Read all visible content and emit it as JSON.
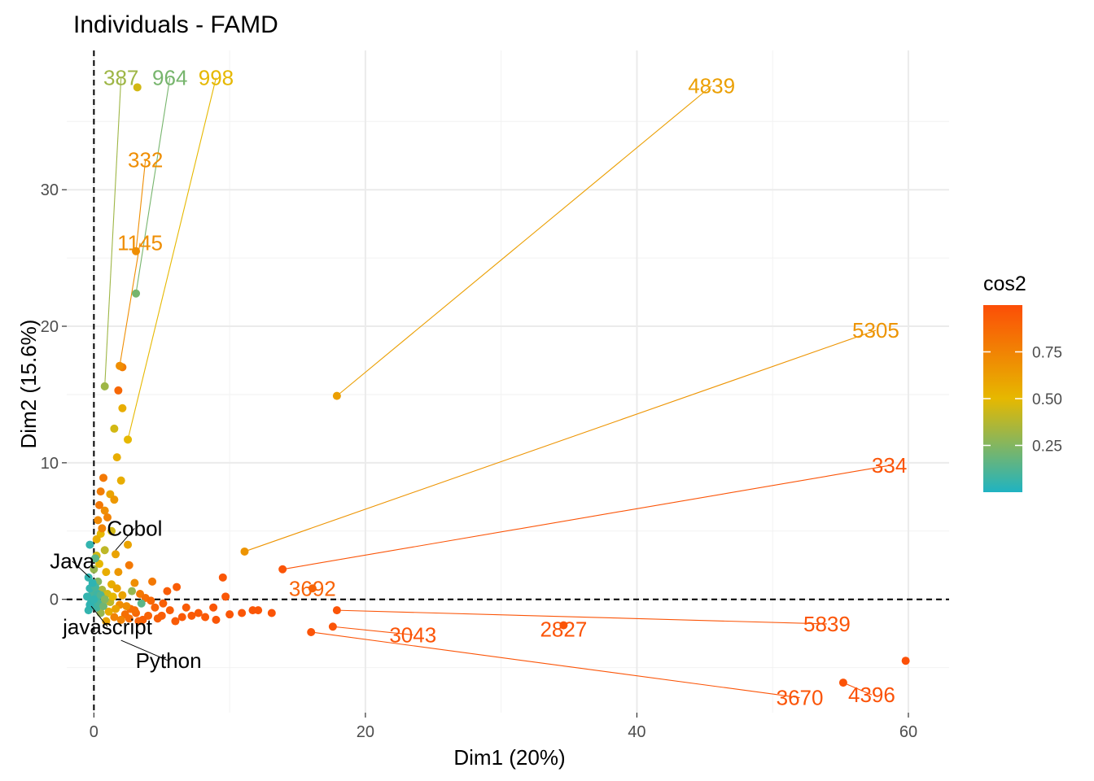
{
  "chart_data": {
    "type": "scatter",
    "title": "Individuals - FAMD",
    "xlabel": "Dim1 (20%)",
    "ylabel": "Dim2 (15.6%)",
    "xlim": [
      -2,
      63
    ],
    "ylim": [
      -8.3,
      40.2
    ],
    "x_ticks": [
      0,
      20,
      40,
      60
    ],
    "y_ticks": [
      0,
      10,
      20,
      30
    ],
    "grid": true,
    "reference_lines": {
      "x": 0,
      "y": 0
    },
    "legend": {
      "title": "cos2",
      "position": "right",
      "ticks": [
        0.25,
        0.5,
        0.75
      ],
      "tick_labels": [
        "0.25",
        "0.50",
        "0.75"
      ]
    },
    "colors": {
      "low": "#1fb3c2",
      "mid": "#e6b800",
      "high": "#fc4e07"
    },
    "labeled_points": [
      {
        "id": "4839",
        "x": 17.9,
        "y": 14.9,
        "cos2": 0.62,
        "lx": 45.5,
        "ly": 37.6
      },
      {
        "id": "5305",
        "x": 11.1,
        "y": 3.5,
        "cos2": 0.67,
        "lx": 57.6,
        "ly": 19.7
      },
      {
        "id": "334",
        "x": 13.9,
        "y": 2.2,
        "cos2": 0.97,
        "lx": 58.6,
        "ly": 9.8
      },
      {
        "id": "5839",
        "x": 17.9,
        "y": -0.8,
        "cos2": 0.97,
        "lx": 54.0,
        "ly": -1.8
      },
      {
        "id": "4396",
        "x": 55.2,
        "y": -6.1,
        "cos2": 0.98,
        "lx": 57.3,
        "ly": -7.0
      },
      {
        "id": "3670",
        "x": 16.0,
        "y": -2.4,
        "cos2": 0.97,
        "lx": 52.0,
        "ly": -7.2
      },
      {
        "id": "2827",
        "x": 34.6,
        "y": -1.9,
        "cos2": 0.97,
        "lx": 34.6,
        "ly": -2.2
      },
      {
        "id": "3043",
        "x": 17.6,
        "y": -2.0,
        "cos2": 0.97,
        "lx": 23.5,
        "ly": -2.6
      },
      {
        "id": "3692",
        "x": 16.1,
        "y": 0.8,
        "cos2": 0.9,
        "lx": 16.1,
        "ly": 0.8
      },
      {
        "id": "387",
        "x": 0.8,
        "y": 15.6,
        "cos2": 0.32,
        "lx": 2.0,
        "ly": 38.2
      },
      {
        "id": "964",
        "x": 3.1,
        "y": 22.4,
        "cos2": 0.22,
        "lx": 5.6,
        "ly": 38.2
      },
      {
        "id": "998",
        "x": 2.5,
        "y": 11.7,
        "cos2": 0.5,
        "lx": 9.0,
        "ly": 38.2
      },
      {
        "id": "332",
        "x": 3.1,
        "y": 25.5,
        "cos2": 0.7,
        "lx": 3.8,
        "ly": 32.2
      },
      {
        "id": "1145",
        "x": 1.9,
        "y": 17.1,
        "cos2": 0.7,
        "lx": 3.4,
        "ly": 26.1
      }
    ],
    "extra_points": [
      {
        "x": 59.8,
        "y": -4.5,
        "cos2": 0.99
      },
      {
        "x": 3.2,
        "y": 37.5,
        "cos2": 0.45
      },
      {
        "x": 2.1,
        "y": 17.0,
        "cos2": 0.78
      },
      {
        "x": 1.8,
        "y": 15.3,
        "cos2": 0.88
      },
      {
        "x": 2.1,
        "y": 14.0,
        "cos2": 0.55
      },
      {
        "x": 1.5,
        "y": 12.5,
        "cos2": 0.45
      },
      {
        "x": 1.7,
        "y": 10.4,
        "cos2": 0.55
      },
      {
        "x": 2.0,
        "y": 8.7,
        "cos2": 0.55
      },
      {
        "x": 0.7,
        "y": 8.9,
        "cos2": 0.8
      },
      {
        "x": 0.5,
        "y": 7.9,
        "cos2": 0.78
      },
      {
        "x": 1.2,
        "y": 7.7,
        "cos2": 0.6
      },
      {
        "x": 0.8,
        "y": 6.5,
        "cos2": 0.7
      },
      {
        "x": 1.5,
        "y": 7.3,
        "cos2": 0.65
      },
      {
        "x": 0.3,
        "y": 5.8,
        "cos2": 0.72
      },
      {
        "x": 0.5,
        "y": 4.8,
        "cos2": 0.5
      },
      {
        "x": 2.5,
        "y": 4.0,
        "cos2": 0.6
      },
      {
        "x": -0.3,
        "y": 4.0,
        "cos2": 0.05
      },
      {
        "x": 0.2,
        "y": 3.2,
        "cos2": 0.45
      },
      {
        "x": 1.6,
        "y": 3.3,
        "cos2": 0.6
      },
      {
        "x": 2.6,
        "y": 2.5,
        "cos2": 0.8
      },
      {
        "x": 9.5,
        "y": 1.6,
        "cos2": 0.96
      },
      {
        "x": 6.1,
        "y": 0.9,
        "cos2": 0.93
      },
      {
        "x": 5.4,
        "y": 0.6,
        "cos2": 0.93
      },
      {
        "x": 9.7,
        "y": 0.2,
        "cos2": 0.96
      },
      {
        "x": 4.3,
        "y": 1.3,
        "cos2": 0.8
      },
      {
        "x": 8.8,
        "y": -0.6,
        "cos2": 0.96
      },
      {
        "x": 10.0,
        "y": -1.1,
        "cos2": 0.96
      },
      {
        "x": 11.7,
        "y": -0.8,
        "cos2": 0.96
      },
      {
        "x": 12.1,
        "y": -0.8,
        "cos2": 0.96
      },
      {
        "x": 13.1,
        "y": -1.0,
        "cos2": 0.97
      },
      {
        "x": 9.0,
        "y": -1.5,
        "cos2": 0.96
      },
      {
        "x": 7.7,
        "y": -1.0,
        "cos2": 0.95
      },
      {
        "x": 7.2,
        "y": -1.2,
        "cos2": 0.95
      },
      {
        "x": 6.5,
        "y": -1.3,
        "cos2": 0.95
      },
      {
        "x": 6.0,
        "y": -1.6,
        "cos2": 0.94
      },
      {
        "x": 5.6,
        "y": -0.8,
        "cos2": 0.93
      },
      {
        "x": 5.1,
        "y": -0.3,
        "cos2": 0.92
      },
      {
        "x": 4.5,
        "y": -0.6,
        "cos2": 0.9
      },
      {
        "x": 4.0,
        "y": -1.2,
        "cos2": 0.9
      },
      {
        "x": 3.6,
        "y": -1.5,
        "cos2": 0.92
      },
      {
        "x": 3.1,
        "y": -1.0,
        "cos2": 0.88
      },
      {
        "x": 2.7,
        "y": -0.7,
        "cos2": 0.85
      },
      {
        "x": 2.3,
        "y": -1.1,
        "cos2": 0.85
      },
      {
        "x": 1.9,
        "y": -0.4,
        "cos2": 0.7
      },
      {
        "x": 1.5,
        "y": -1.3,
        "cos2": 0.75
      },
      {
        "x": 1.1,
        "y": -0.9,
        "cos2": 0.55
      },
      {
        "x": 0.9,
        "y": -1.6,
        "cos2": 0.6
      },
      {
        "x": 0.5,
        "y": -1.0,
        "cos2": 0.3
      },
      {
        "x": 0.2,
        "y": -0.6,
        "cos2": 0.1
      },
      {
        "x": -0.1,
        "y": 0.5,
        "cos2": 0.1
      },
      {
        "x": 0.3,
        "y": 1.3,
        "cos2": 0.25
      },
      {
        "x": 0.6,
        "y": 0.7,
        "cos2": 0.35
      },
      {
        "x": 1.0,
        "y": 0.4,
        "cos2": 0.45
      },
      {
        "x": 1.3,
        "y": 1.1,
        "cos2": 0.55
      },
      {
        "x": 1.7,
        "y": 0.8,
        "cos2": 0.6
      },
      {
        "x": 2.1,
        "y": 0.3,
        "cos2": 0.6
      },
      {
        "x": 2.8,
        "y": 0.6,
        "cos2": 0.3
      },
      {
        "x": 3.0,
        "y": 1.2,
        "cos2": 0.7
      },
      {
        "x": 3.4,
        "y": 0.4,
        "cos2": 0.8
      },
      {
        "x": 3.8,
        "y": 0.1,
        "cos2": 0.85
      },
      {
        "x": 3.5,
        "y": -0.3,
        "cos2": 0.15
      },
      {
        "x": 4.2,
        "y": -0.1,
        "cos2": 0.88
      },
      {
        "x": 0.0,
        "y": 2.2,
        "cos2": 0.3
      },
      {
        "x": 0.4,
        "y": 2.6,
        "cos2": 0.5
      },
      {
        "x": 0.8,
        "y": 3.6,
        "cos2": 0.4
      },
      {
        "x": 0.1,
        "y": 3.0,
        "cos2": 0.15
      },
      {
        "x": -0.4,
        "y": 1.6,
        "cos2": 0.05
      },
      {
        "x": -0.3,
        "y": 0.8,
        "cos2": 0.05
      },
      {
        "x": -0.5,
        "y": 0.2,
        "cos2": 0.05
      },
      {
        "x": -0.2,
        "y": -0.2,
        "cos2": 0.05
      },
      {
        "x": 0.0,
        "y": -0.5,
        "cos2": 0.08
      },
      {
        "x": -0.4,
        "y": -0.8,
        "cos2": 0.05
      },
      {
        "x": 0.2,
        "y": 0.1,
        "cos2": 0.06
      },
      {
        "x": 0.4,
        "y": -0.3,
        "cos2": 0.1
      },
      {
        "x": 0.7,
        "y": -0.5,
        "cos2": 0.2
      },
      {
        "x": 0.3,
        "y": 0.4,
        "cos2": 0.08
      },
      {
        "x": 0.1,
        "y": 0.9,
        "cos2": 0.1
      },
      {
        "x": 1.2,
        "y": -0.2,
        "cos2": 0.4
      },
      {
        "x": 1.4,
        "y": 0.2,
        "cos2": 0.5
      },
      {
        "x": 2.4,
        "y": -0.5,
        "cos2": 0.7
      },
      {
        "x": 3.0,
        "y": -0.8,
        "cos2": 0.85
      },
      {
        "x": 5.0,
        "y": -1.2,
        "cos2": 0.93
      },
      {
        "x": 6.8,
        "y": -0.6,
        "cos2": 0.94
      },
      {
        "x": 8.2,
        "y": -1.3,
        "cos2": 0.95
      },
      {
        "x": 10.9,
        "y": -1.0,
        "cos2": 0.96
      },
      {
        "x": 0.6,
        "y": 5.2,
        "cos2": 0.75
      },
      {
        "x": 0.2,
        "y": 4.4,
        "cos2": 0.55
      },
      {
        "x": 1.0,
        "y": 6.0,
        "cos2": 0.75
      },
      {
        "x": 0.4,
        "y": 6.9,
        "cos2": 0.8
      },
      {
        "x": 1.3,
        "y": 5.0,
        "cos2": 0.45
      },
      {
        "x": 0.9,
        "y": 2.0,
        "cos2": 0.55
      },
      {
        "x": 1.8,
        "y": 2.0,
        "cos2": 0.65
      },
      {
        "x": -0.1,
        "y": 1.2,
        "cos2": 0.04
      },
      {
        "x": -0.3,
        "y": -0.4,
        "cos2": 0.04
      },
      {
        "x": 0.0,
        "y": 0.0,
        "cos2": 0.05
      },
      {
        "x": 0.5,
        "y": 0.3,
        "cos2": 0.12
      },
      {
        "x": 0.8,
        "y": 0.0,
        "cos2": 0.25
      },
      {
        "x": 1.6,
        "y": -0.7,
        "cos2": 0.6
      },
      {
        "x": 2.0,
        "y": -1.5,
        "cos2": 0.75
      },
      {
        "x": 4.7,
        "y": -1.4,
        "cos2": 0.92
      },
      {
        "x": 3.3,
        "y": -1.6,
        "cos2": 0.9
      },
      {
        "x": 2.6,
        "y": -1.4,
        "cos2": 0.85
      }
    ],
    "variables": [
      {
        "name": "Cobol",
        "x": 1.6,
        "y": 3.6,
        "lx": 3.0,
        "ly": 5.2
      },
      {
        "name": "Java",
        "x": -0.3,
        "y": 1.6,
        "lx": -1.6,
        "ly": 2.8
      },
      {
        "name": "javascript",
        "x": -0.2,
        "y": -0.5,
        "lx": 1.0,
        "ly": -2.0
      },
      {
        "name": "Python",
        "x": 2.0,
        "y": -3.0,
        "lx": 5.5,
        "ly": -4.5
      }
    ]
  }
}
